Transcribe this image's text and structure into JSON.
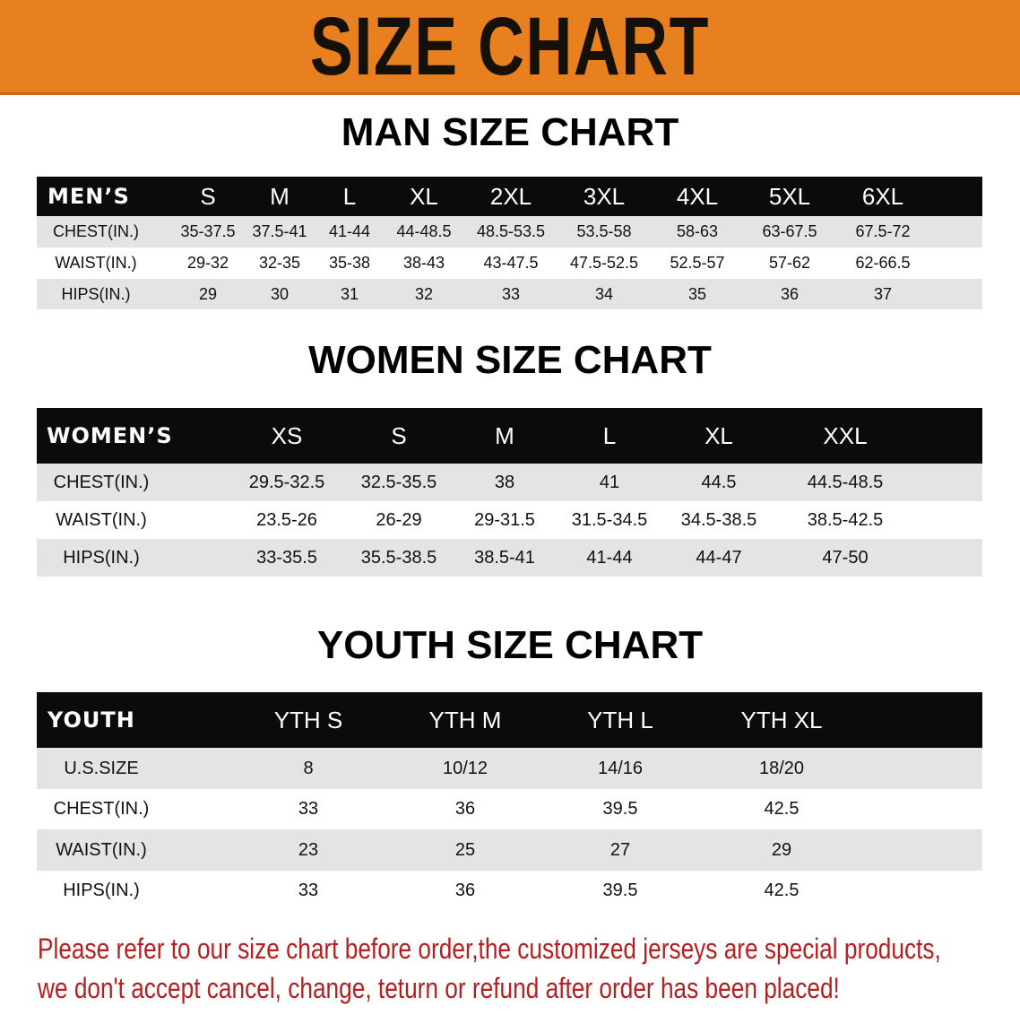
{
  "banner": {
    "title": "SIZE CHART",
    "color": "#e8801f"
  },
  "men": {
    "title": "MAN SIZE CHART",
    "header": [
      "MEN’S",
      "S",
      "M",
      "L",
      "XL",
      "2XL",
      "3XL",
      "4XL",
      "5XL",
      "6XL"
    ],
    "rows": [
      [
        "CHEST(IN.)",
        "35-37.5",
        "37.5-41",
        "41-44",
        "44-48.5",
        "48.5-53.5",
        "53.5-58",
        "58-63",
        "63-67.5",
        "67.5-72"
      ],
      [
        "WAIST(IN.)",
        "29-32",
        "32-35",
        "35-38",
        "38-43",
        "43-47.5",
        "47.5-52.5",
        "52.5-57",
        "57-62",
        "62-66.5"
      ],
      [
        "HIPS(IN.)",
        "29",
        "30",
        "31",
        "32",
        "33",
        "34",
        "35",
        "36",
        "37"
      ]
    ]
  },
  "women": {
    "title": "WOMEN SIZE CHART",
    "header": [
      "WOMEN’S",
      "XS",
      "S",
      "M",
      "L",
      "XL",
      "XXL"
    ],
    "rows": [
      [
        "CHEST(IN.)",
        "29.5-32.5",
        "32.5-35.5",
        "38",
        "41",
        "44.5",
        "44.5-48.5"
      ],
      [
        "WAIST(IN.)",
        "23.5-26",
        "26-29",
        "29-31.5",
        "31.5-34.5",
        "34.5-38.5",
        "38.5-42.5"
      ],
      [
        "HIPS(IN.)",
        "33-35.5",
        "35.5-38.5",
        "38.5-41",
        "41-44",
        "44-47",
        "47-50"
      ]
    ]
  },
  "youth": {
    "title": "YOUTH SIZE CHART",
    "header": [
      "YOUTH",
      "YTH S",
      "YTH M",
      "YTH L",
      "YTH XL"
    ],
    "rows": [
      [
        "U.S.SIZE",
        "8",
        "10/12",
        "14/16",
        "18/20"
      ],
      [
        "CHEST(IN.)",
        "33",
        "36",
        "39.5",
        "42.5"
      ],
      [
        "WAIST(IN.)",
        "23",
        "25",
        "27",
        "29"
      ],
      [
        "HIPS(IN.)",
        "33",
        "36",
        "39.5",
        "42.5"
      ]
    ]
  },
  "notice": {
    "line1": "Please refer to our size chart before order,the customized jerseys are special products,",
    "line2": "we don't accept cancel, change, teturn or refund after order has been placed!",
    "color": "#b3201f"
  }
}
